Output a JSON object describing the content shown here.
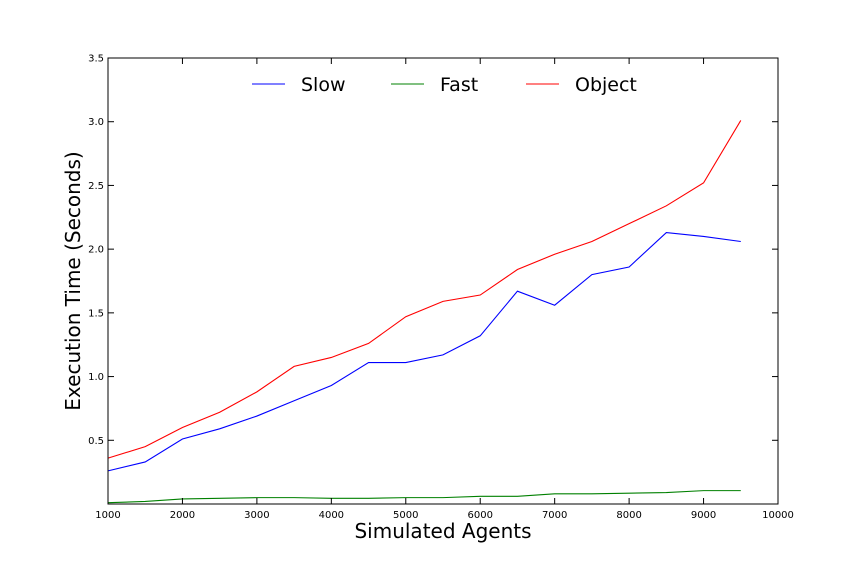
{
  "chart_data": {
    "type": "line",
    "title": "",
    "xlabel": "Simulated Agents",
    "ylabel": "Execution Time (Seconds)",
    "xlim": [
      1000,
      10000
    ],
    "ylim": [
      0,
      3.5
    ],
    "x_ticks": [
      1000,
      2000,
      3000,
      4000,
      5000,
      6000,
      7000,
      8000,
      9000,
      10000
    ],
    "y_ticks": [
      0.5,
      1.0,
      1.5,
      2.0,
      2.5,
      3.0,
      3.5
    ],
    "y_tick_labels": [
      "0.5",
      "1.0",
      "1.5",
      "2.0",
      "2.5",
      "3.0",
      "3.5"
    ],
    "grid": false,
    "legend_position": "top-center",
    "x": [
      1000,
      1500,
      2000,
      2500,
      3000,
      3500,
      4000,
      4500,
      5000,
      5500,
      6000,
      6500,
      7000,
      7500,
      8000,
      8500,
      9000,
      9500
    ],
    "series": [
      {
        "name": "Slow",
        "color": "#0000ff",
        "values": [
          0.26,
          0.33,
          0.51,
          0.59,
          0.69,
          0.81,
          0.93,
          1.11,
          1.11,
          1.17,
          1.32,
          1.67,
          1.56,
          1.8,
          1.86,
          2.13,
          2.1,
          2.06
        ]
      },
      {
        "name": "Fast",
        "color": "#008000",
        "values": [
          0.01,
          0.02,
          0.04,
          0.045,
          0.05,
          0.05,
          0.045,
          0.045,
          0.05,
          0.05,
          0.06,
          0.06,
          0.08,
          0.08,
          0.085,
          0.09,
          0.105,
          0.105
        ]
      },
      {
        "name": "Object",
        "color": "#ff0000",
        "values": [
          0.36,
          0.45,
          0.6,
          0.72,
          0.88,
          1.08,
          1.15,
          1.26,
          1.47,
          1.59,
          1.64,
          1.84,
          1.96,
          2.06,
          2.2,
          2.34,
          2.52,
          3.01
        ]
      }
    ]
  }
}
